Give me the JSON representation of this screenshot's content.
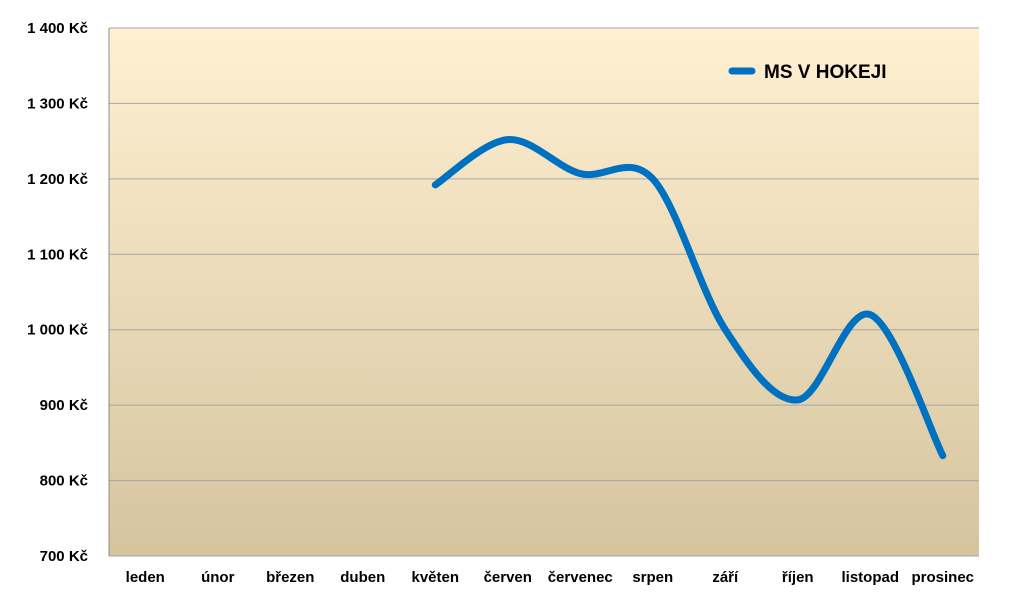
{
  "chart_data": {
    "type": "line",
    "title": "",
    "xlabel": "",
    "ylabel": "",
    "categories": [
      "leden",
      "únor",
      "březen",
      "duben",
      "květen",
      "červen",
      "červenec",
      "srpen",
      "září",
      "říjen",
      "listopad",
      "prosinec"
    ],
    "series": [
      {
        "name": "MS V HOKEJI",
        "color": "#0070C0",
        "values": [
          null,
          null,
          null,
          null,
          1192,
          1252,
          1207,
          1200,
          1000,
          907,
          1020,
          833
        ]
      }
    ],
    "ylim": [
      700,
      1400
    ],
    "ytick_values": [
      700,
      800,
      900,
      1000,
      1100,
      1200,
      1300,
      1400
    ],
    "ytick_labels": [
      "700 Kč",
      "800 Kč",
      "900 Kč",
      "1 000 Kč",
      "1 100 Kč",
      "1 200 Kč",
      "1 300 Kč",
      "1 400 Kč"
    ],
    "smooth": true,
    "grid": true,
    "legend_position": "top-right",
    "background_gradient": [
      "#FFF0D2",
      "#D5C49E"
    ],
    "gridline_color": "#A6A6A6"
  }
}
